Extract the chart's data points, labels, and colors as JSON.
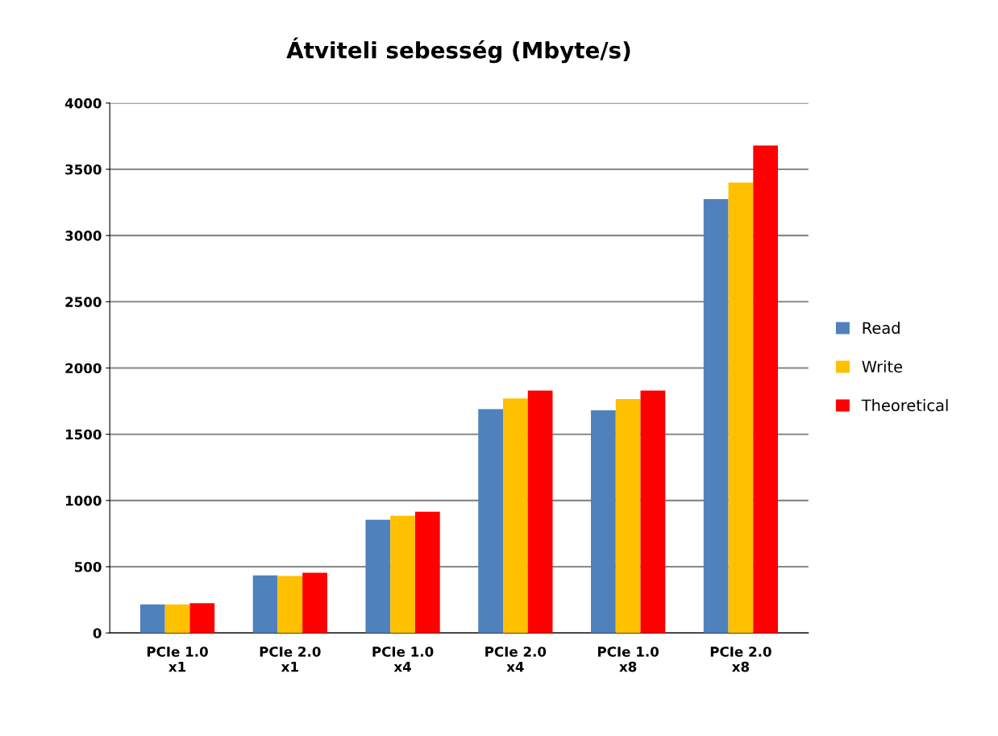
{
  "chart_data": {
    "type": "bar",
    "title": "Átviteli sebesség (Mbyte/s)",
    "categories": [
      "PCIe 1.0\nx1",
      "PCIe 2.0\nx1",
      "PCIe 1.0\nx4",
      "PCIe 2.0\nx4",
      "PCIe 1.0\nx8",
      "PCIe 2.0\nx8"
    ],
    "series": [
      {
        "name": "Read",
        "color": "#4f81bd",
        "values": [
          215,
          435,
          855,
          1690,
          1680,
          3275
        ]
      },
      {
        "name": "Write",
        "color": "#ffc000",
        "values": [
          215,
          430,
          885,
          1770,
          1765,
          3400
        ]
      },
      {
        "name": "Theoretical",
        "color": "#ff0000",
        "values": [
          225,
          455,
          915,
          1830,
          1830,
          3680
        ]
      }
    ],
    "ylim": [
      0,
      4000
    ],
    "yticks": [
      0,
      500,
      1000,
      1500,
      2000,
      2500,
      3000,
      3500,
      4000
    ],
    "grid": "y",
    "legend": "right"
  }
}
